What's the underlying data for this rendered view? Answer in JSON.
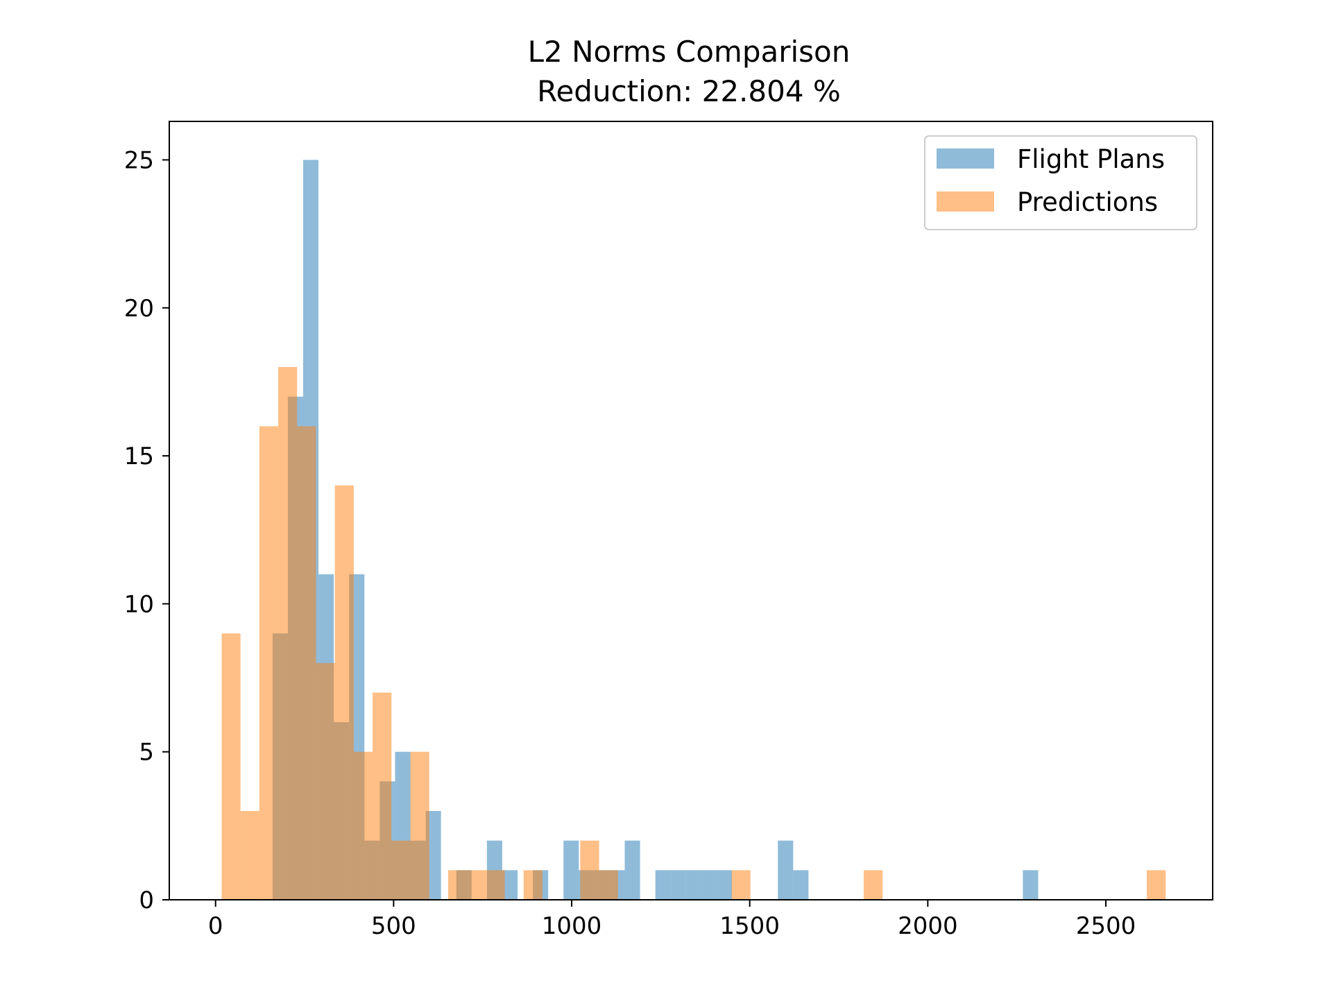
{
  "chart_data": {
    "type": "bar",
    "subtype": "overlapping-histogram",
    "title": "L2 Norms Comparison",
    "subtitle": "Reduction: 22.804 %",
    "xlabel": "",
    "ylabel": "",
    "xlim": [
      -130,
      2800
    ],
    "ylim": [
      0,
      26.3
    ],
    "xticks": [
      0,
      500,
      1000,
      1500,
      2000,
      2500
    ],
    "yticks": [
      0,
      5,
      10,
      15,
      20,
      25
    ],
    "grid": false,
    "legend_position": "top-right",
    "bar_alpha": 0.5,
    "series": [
      {
        "name": "Flight Plans",
        "color": "#1f77b4",
        "bins": [
          {
            "x0": 160,
            "x1": 203,
            "count": 9
          },
          {
            "x0": 203,
            "x1": 246,
            "count": 17
          },
          {
            "x0": 246,
            "x1": 289,
            "count": 25
          },
          {
            "x0": 289,
            "x1": 332,
            "count": 11
          },
          {
            "x0": 332,
            "x1": 375,
            "count": 6
          },
          {
            "x0": 375,
            "x1": 418,
            "count": 11
          },
          {
            "x0": 418,
            "x1": 461,
            "count": 2
          },
          {
            "x0": 461,
            "x1": 504,
            "count": 4
          },
          {
            "x0": 504,
            "x1": 547,
            "count": 5
          },
          {
            "x0": 547,
            "x1": 590,
            "count": 2
          },
          {
            "x0": 590,
            "x1": 633,
            "count": 3
          },
          {
            "x0": 676,
            "x1": 719,
            "count": 1
          },
          {
            "x0": 762,
            "x1": 805,
            "count": 2
          },
          {
            "x0": 805,
            "x1": 848,
            "count": 1
          },
          {
            "x0": 891,
            "x1": 934,
            "count": 1
          },
          {
            "x0": 977,
            "x1": 1020,
            "count": 2
          },
          {
            "x0": 1020,
            "x1": 1063,
            "count": 1
          },
          {
            "x0": 1063,
            "x1": 1106,
            "count": 1
          },
          {
            "x0": 1106,
            "x1": 1149,
            "count": 1
          },
          {
            "x0": 1149,
            "x1": 1192,
            "count": 2
          },
          {
            "x0": 1235,
            "x1": 1278,
            "count": 1
          },
          {
            "x0": 1278,
            "x1": 1321,
            "count": 1
          },
          {
            "x0": 1321,
            "x1": 1364,
            "count": 1
          },
          {
            "x0": 1364,
            "x1": 1407,
            "count": 1
          },
          {
            "x0": 1407,
            "x1": 1450,
            "count": 1
          },
          {
            "x0": 1579,
            "x1": 1622,
            "count": 2
          },
          {
            "x0": 1622,
            "x1": 1665,
            "count": 1
          },
          {
            "x0": 2267,
            "x1": 2310,
            "count": 1
          }
        ]
      },
      {
        "name": "Predictions",
        "color": "#ff7f0e",
        "bins": [
          {
            "x0": 17,
            "x1": 70,
            "count": 9
          },
          {
            "x0": 70,
            "x1": 123,
            "count": 3
          },
          {
            "x0": 123,
            "x1": 176,
            "count": 16
          },
          {
            "x0": 176,
            "x1": 229,
            "count": 18
          },
          {
            "x0": 229,
            "x1": 282,
            "count": 16
          },
          {
            "x0": 282,
            "x1": 335,
            "count": 8
          },
          {
            "x0": 335,
            "x1": 388,
            "count": 14
          },
          {
            "x0": 388,
            "x1": 441,
            "count": 5
          },
          {
            "x0": 441,
            "x1": 494,
            "count": 7
          },
          {
            "x0": 494,
            "x1": 547,
            "count": 2
          },
          {
            "x0": 547,
            "x1": 600,
            "count": 5
          },
          {
            "x0": 653,
            "x1": 706,
            "count": 1
          },
          {
            "x0": 706,
            "x1": 759,
            "count": 1
          },
          {
            "x0": 759,
            "x1": 812,
            "count": 1
          },
          {
            "x0": 865,
            "x1": 918,
            "count": 1
          },
          {
            "x0": 1024,
            "x1": 1077,
            "count": 2
          },
          {
            "x0": 1077,
            "x1": 1130,
            "count": 1
          },
          {
            "x0": 1449,
            "x1": 1502,
            "count": 1
          },
          {
            "x0": 1820,
            "x1": 1873,
            "count": 1
          },
          {
            "x0": 2615,
            "x1": 2668,
            "count": 1
          }
        ]
      }
    ]
  }
}
